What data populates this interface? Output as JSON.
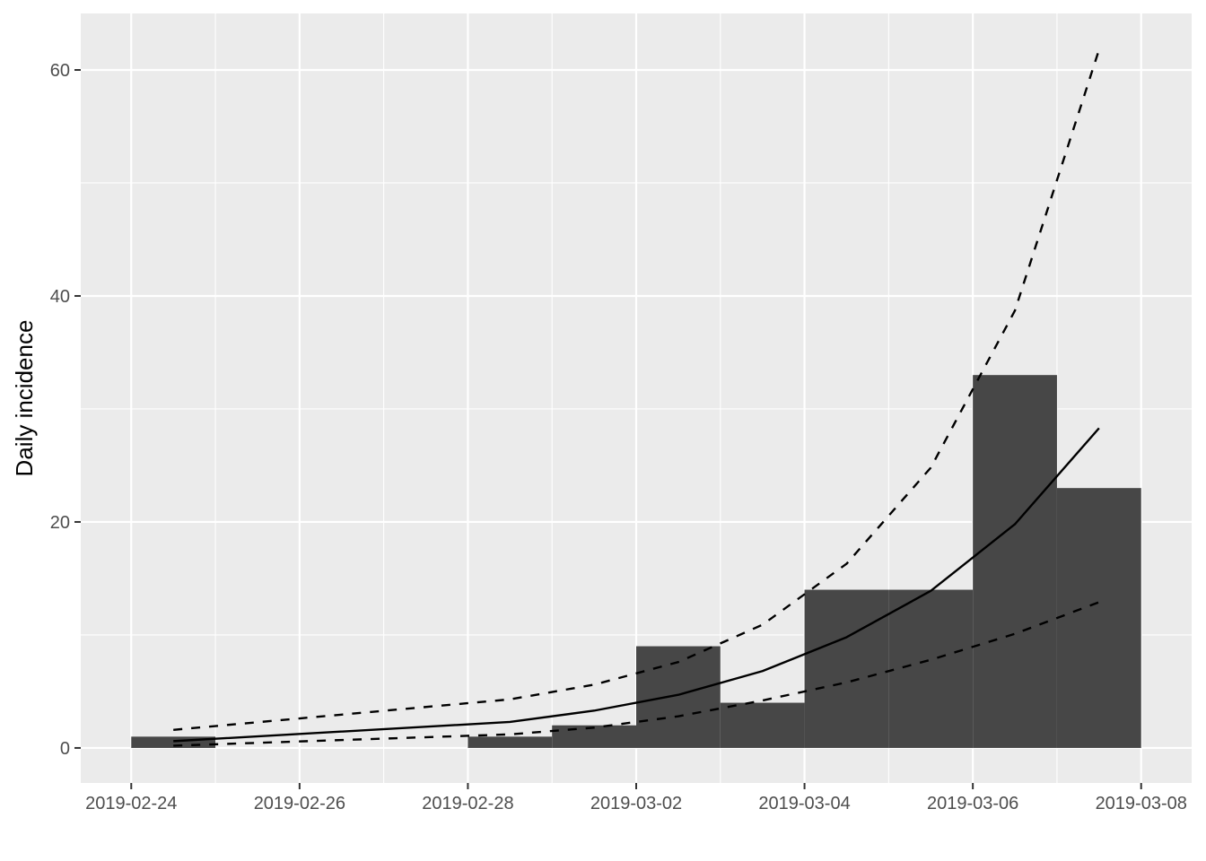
{
  "chart_data": {
    "type": "bar",
    "title": "",
    "xlabel": "",
    "ylabel": "Daily incidence",
    "x_ticks": [
      "2019-02-24",
      "2019-02-26",
      "2019-02-28",
      "2019-03-02",
      "2019-03-04",
      "2019-03-06",
      "2019-03-08"
    ],
    "y_ticks": [
      0,
      20,
      40,
      60
    ],
    "xlim": [
      "2019-02-23.4",
      "2019-03-08.6"
    ],
    "ylim": [
      -3.1,
      65
    ],
    "grid": true,
    "bars": [
      {
        "start": "2019-02-24",
        "end": "2019-02-25",
        "value": 1
      },
      {
        "start": "2019-02-25",
        "end": "2019-02-26",
        "value": 0
      },
      {
        "start": "2019-02-26",
        "end": "2019-02-27",
        "value": 0
      },
      {
        "start": "2019-02-27",
        "end": "2019-02-28",
        "value": 0
      },
      {
        "start": "2019-02-28",
        "end": "2019-03-01",
        "value": 1
      },
      {
        "start": "2019-03-01",
        "end": "2019-03-02",
        "value": 2
      },
      {
        "start": "2019-03-02",
        "end": "2019-03-03",
        "value": 9
      },
      {
        "start": "2019-03-03",
        "end": "2019-03-04",
        "value": 4
      },
      {
        "start": "2019-03-04",
        "end": "2019-03-05",
        "value": 14
      },
      {
        "start": "2019-03-05",
        "end": "2019-03-06",
        "value": 14
      },
      {
        "start": "2019-03-06",
        "end": "2019-03-07",
        "value": 33
      },
      {
        "start": "2019-03-07",
        "end": "2019-03-08",
        "value": 23
      }
    ],
    "lines": [
      {
        "style": "solid",
        "points": [
          [
            "2019-02-24 12:00",
            0.6
          ],
          [
            "2019-02-28 12:00",
            2.3
          ],
          [
            "2019-03-01 12:00",
            3.3
          ],
          [
            "2019-03-02 12:00",
            4.7
          ],
          [
            "2019-03-03 12:00",
            6.8
          ],
          [
            "2019-03-04 12:00",
            9.8
          ],
          [
            "2019-03-05 12:00",
            13.9
          ],
          [
            "2019-03-06 12:00",
            19.8
          ],
          [
            "2019-03-07 12:00",
            28.3
          ]
        ]
      },
      {
        "style": "dashed",
        "points": [
          [
            "2019-02-24 12:00",
            1.6
          ],
          [
            "2019-02-28 12:00",
            4.3
          ],
          [
            "2019-03-01 12:00",
            5.6
          ],
          [
            "2019-03-02 12:00",
            7.6
          ],
          [
            "2019-03-03 12:00",
            10.9
          ],
          [
            "2019-03-04 12:00",
            16.3
          ],
          [
            "2019-03-05 12:00",
            24.8
          ],
          [
            "2019-03-06 12:00",
            38.7
          ],
          [
            "2019-03-07 12:00",
            61.8
          ]
        ]
      },
      {
        "style": "dashed",
        "points": [
          [
            "2019-02-24 12:00",
            0.2
          ],
          [
            "2019-02-28 12:00",
            1.2
          ],
          [
            "2019-03-01 12:00",
            1.8
          ],
          [
            "2019-03-02 12:00",
            2.8
          ],
          [
            "2019-03-03 12:00",
            4.2
          ],
          [
            "2019-03-04 12:00",
            5.8
          ],
          [
            "2019-03-05 12:00",
            7.8
          ],
          [
            "2019-03-06 12:00",
            10.1
          ],
          [
            "2019-03-07 12:00",
            12.9
          ]
        ]
      }
    ],
    "colors": {
      "panel_background": "#ebebeb",
      "grid": "#ffffff",
      "bar_fill": "#474747",
      "line": "#000000",
      "tick_text": "#4d4d4d",
      "tick_mark": "#333333"
    }
  }
}
